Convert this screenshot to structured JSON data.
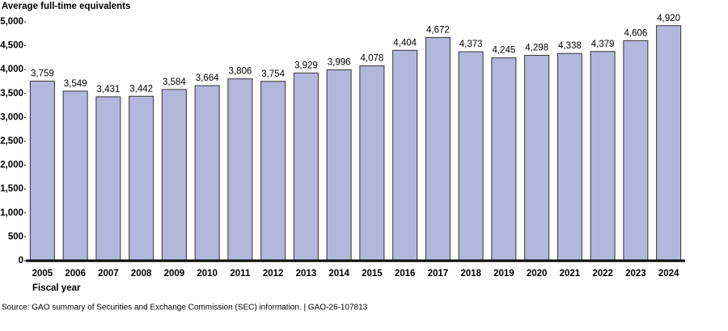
{
  "chart_data": {
    "type": "bar",
    "y_label": "Average full-time equivalents",
    "x_label": "Fiscal year",
    "source": "Source: GAO summary of Securities and Exchange Commission (SEC) information.  |  GAO-26-107813",
    "categories": [
      "2005",
      "2006",
      "2007",
      "2008",
      "2009",
      "2010",
      "2011",
      "2012",
      "2013",
      "2014",
      "2015",
      "2016",
      "2017",
      "2018",
      "2019",
      "2020",
      "2021",
      "2022",
      "2023",
      "2024"
    ],
    "values": [
      3759,
      3549,
      3431,
      3442,
      3584,
      3664,
      3806,
      3754,
      3929,
      3996,
      4078,
      4404,
      4672,
      4373,
      4245,
      4298,
      4338,
      4379,
      4606,
      4920
    ],
    "value_labels": [
      "3,759",
      "3,549",
      "3,431",
      "3,442",
      "3,584",
      "3,664",
      "3,806",
      "3,754",
      "3,929",
      "3,996",
      "4,078",
      "4,404",
      "4,672",
      "4,373",
      "4,245",
      "4,298",
      "4,338",
      "4,379",
      "4,606",
      "4,920"
    ],
    "color": "#b4b7dc",
    "ylim": [
      0,
      5000
    ],
    "yticks": [
      0,
      500,
      {
        "value": 1000,
        "label": "1,000"
      },
      {
        "value": 1500,
        "label": "1,500"
      },
      {
        "value": 2000,
        "label": "2,000"
      },
      {
        "value": 2500,
        "label": "2,500"
      },
      {
        "value": 3000,
        "label": "3,000"
      },
      {
        "value": 3500,
        "label": "3,500"
      },
      {
        "value": 4000,
        "label": "4,000"
      },
      {
        "value": 4500,
        "label": "4,500"
      },
      {
        "value": 5000,
        "label": "5,000"
      }
    ],
    "grid": false
  }
}
